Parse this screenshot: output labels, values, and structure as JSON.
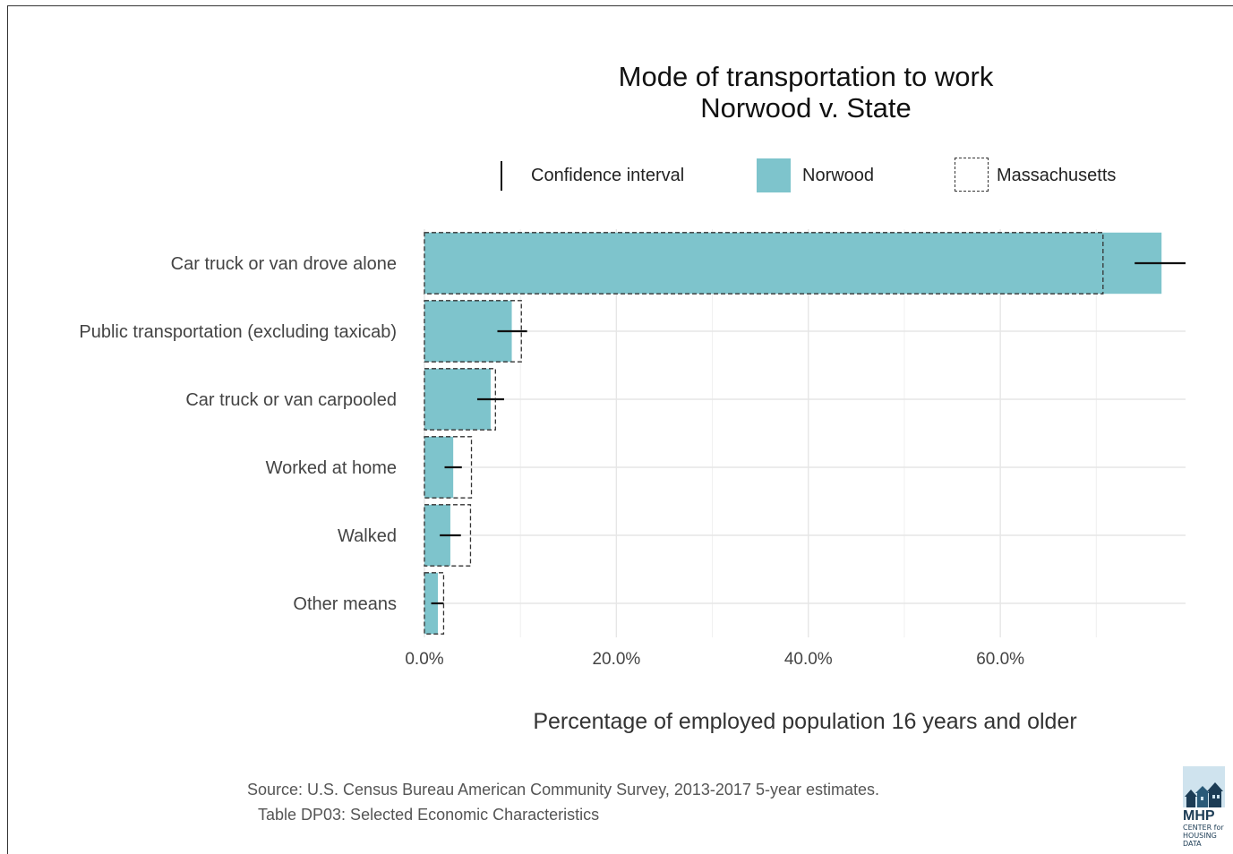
{
  "chart_data": {
    "type": "bar",
    "orientation": "horizontal",
    "title": "Mode of transportation to work",
    "subtitle": "Norwood v. State",
    "xlabel": "Percentage of employed population 16 years and older",
    "ylabel": "",
    "xlim": [
      0,
      79.3
    ],
    "xticks": [
      {
        "value": 0,
        "label": "0.0%"
      },
      {
        "value": 20,
        "label": "20.0%"
      },
      {
        "value": 40,
        "label": "40.0%"
      },
      {
        "value": 60,
        "label": "60.0%"
      }
    ],
    "minor_gridlines": [
      10,
      30,
      50,
      70
    ],
    "grid": true,
    "legend_position": "top",
    "legend": [
      {
        "key": "ci",
        "label": "Confidence interval"
      },
      {
        "key": "norwood",
        "label": "Norwood"
      },
      {
        "key": "ma",
        "label": "Massachusetts"
      }
    ],
    "categories": [
      "Car truck or van drove alone",
      "Public transportation (excluding taxicab)",
      "Car truck or van carpooled",
      "Worked at home",
      "Walked",
      "Other means"
    ],
    "series": [
      {
        "name": "Norwood",
        "style": "filled",
        "color": "#7ec4cc",
        "values": [
          76.8,
          9.1,
          6.9,
          3.0,
          2.7,
          1.4
        ],
        "ci_low": [
          74.0,
          7.6,
          5.5,
          2.1,
          1.6,
          0.7
        ],
        "ci_high": [
          79.3,
          10.7,
          8.3,
          3.9,
          3.8,
          2.0
        ]
      },
      {
        "name": "Massachusetts",
        "style": "dashed-outline",
        "color": "#333333",
        "values": [
          70.7,
          10.1,
          7.4,
          4.9,
          4.8,
          2.0
        ]
      }
    ]
  },
  "caption": {
    "line1": "Source: U.S. Census Bureau American Community Survey, 2013-2017 5-year estimates.",
    "line2": "Table DP03: Selected Economic Characteristics"
  },
  "logo": {
    "name": "MHP",
    "line1": "CENTER for",
    "line2": "HOUSING DATA"
  }
}
